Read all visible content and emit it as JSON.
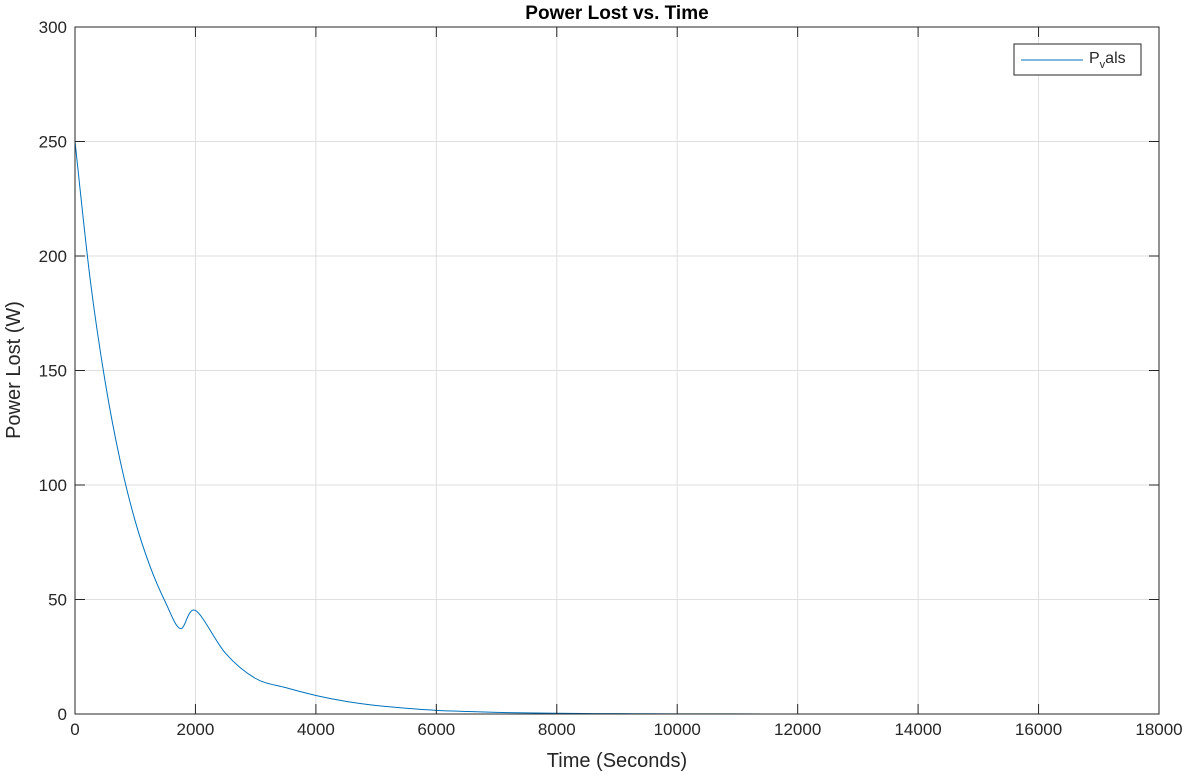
{
  "chart_data": {
    "type": "line",
    "title": "Power Lost vs. Time",
    "xlabel": "Time (Seconds)",
    "ylabel": "Power Lost (W)",
    "xlim": [
      0,
      18000
    ],
    "ylim": [
      0,
      300
    ],
    "xticks": [
      "0",
      "2000",
      "4000",
      "6000",
      "8000",
      "10000",
      "12000",
      "14000",
      "16000",
      "18000"
    ],
    "yticks": [
      "0",
      "50",
      "100",
      "150",
      "200",
      "250",
      "300"
    ],
    "grid": true,
    "legend": {
      "placement": "top-right",
      "entry": {
        "main": "P",
        "sub": "v",
        "rest": "als"
      }
    },
    "series": [
      {
        "color": "#0072BD",
        "x": [
          0,
          250,
          500,
          750,
          1000,
          1250,
          1500,
          1750,
          2000,
          2500,
          3000,
          3500,
          4000,
          4500,
          5000,
          5500,
          6000,
          6500,
          7000,
          7500,
          8000,
          9000,
          10000,
          11000,
          12000,
          13000,
          14000,
          15000,
          16000,
          17000,
          18000
        ],
        "y": [
          250,
          190.2,
          145.2,
          110.6,
          84.2,
          64.2,
          48.9,
          37.3,
          45.2,
          26.5,
          15.5,
          11.5,
          8.1,
          5.5,
          3.7,
          2.5,
          1.6,
          1.1,
          0.7,
          0.5,
          0.3,
          0.14,
          0.06,
          0.03,
          0.01,
          0.0,
          0.0,
          0.0,
          0.0,
          0.0,
          0.0
        ]
      }
    ]
  }
}
